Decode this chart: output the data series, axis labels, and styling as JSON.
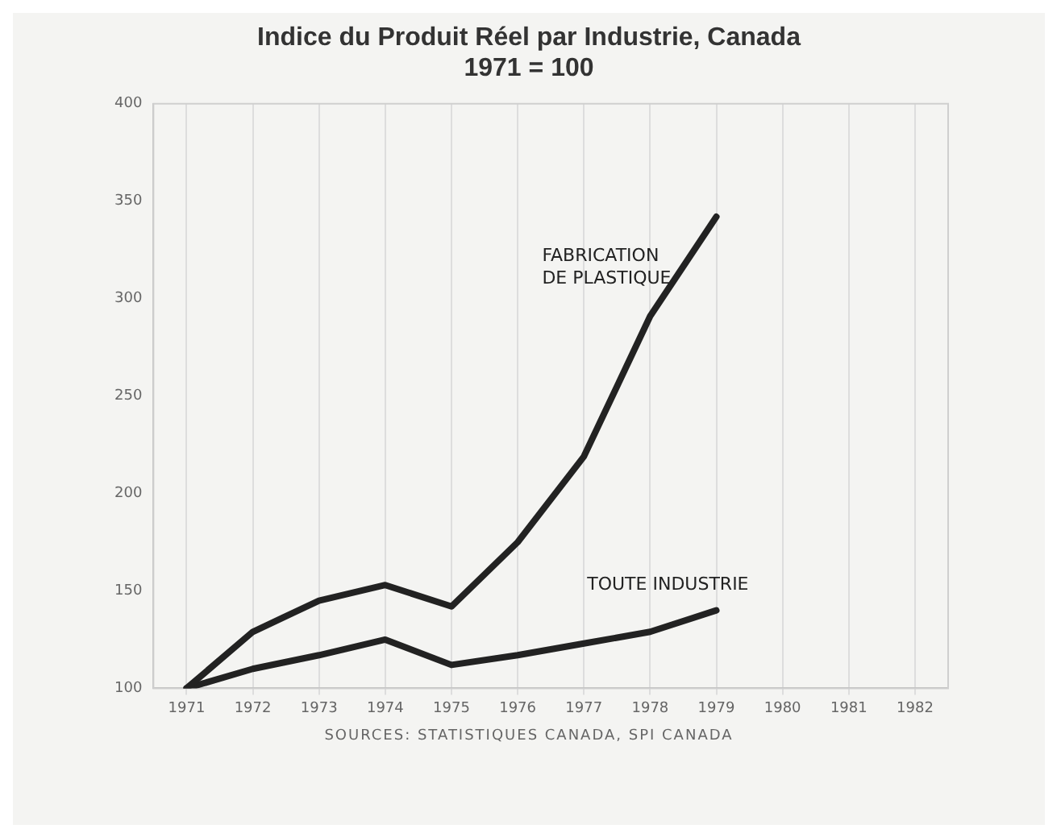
{
  "chart_data": {
    "type": "line",
    "title": [
      "Indice du Produit Réel par Industrie, Canada",
      "1971 = 100"
    ],
    "categories": [
      "1971",
      "1972",
      "1973",
      "1974",
      "1975",
      "1976",
      "1977",
      "1978",
      "1979",
      "1980",
      "1981",
      "1982"
    ],
    "series": [
      {
        "name": "FABRICATION\nDE PLASTIQUE",
        "color": "#222222",
        "values": [
          100,
          129,
          145,
          153,
          142,
          175,
          219,
          291,
          342,
          null,
          null,
          null
        ]
      },
      {
        "name": "TOUTE INDUSTRIE",
        "color": "#222222",
        "values": [
          100,
          110,
          117,
          125,
          112,
          117,
          123,
          129,
          140,
          null,
          null,
          null
        ]
      }
    ],
    "ylim": [
      100,
      400
    ],
    "yticks": [
      100,
      150,
      200,
      250,
      300,
      350,
      400
    ],
    "grid": "x",
    "legend": false,
    "marker": "none",
    "line_style": "solid",
    "annotations": [
      "SOURCES: STATISTIQUES CANADA, SPI CANADA"
    ]
  }
}
